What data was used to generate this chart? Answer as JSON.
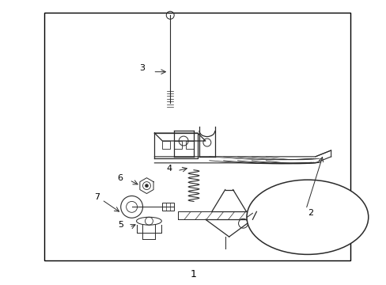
{
  "fig_width": 4.89,
  "fig_height": 3.6,
  "dpi": 100,
  "background_color": "#ffffff",
  "border_color": "#000000",
  "line_color": "#2a2a2a",
  "label_color": "#000000",
  "border_lw": 1.0,
  "part_lw": 0.9
}
